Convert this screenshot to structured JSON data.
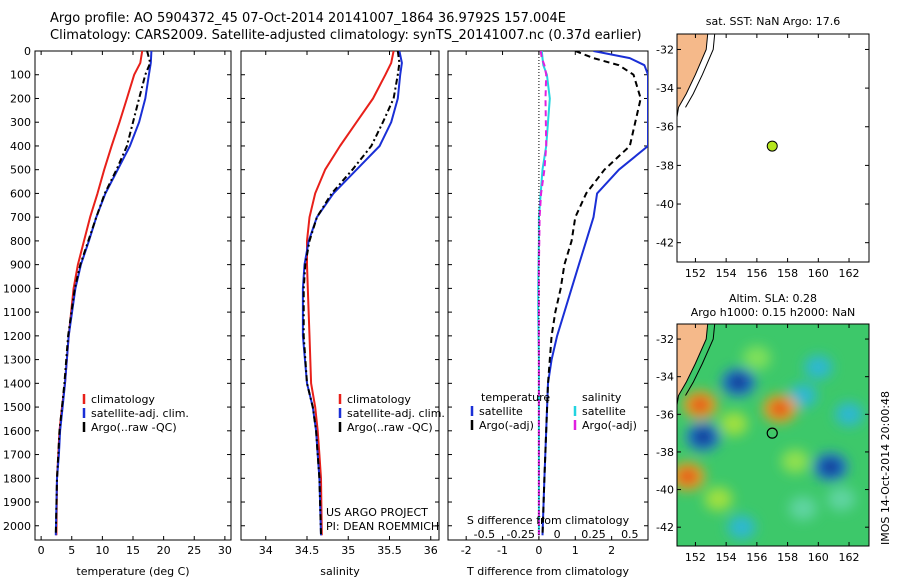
{
  "header": {
    "line1": "Argo profile: AO 5904372_45 07-Oct-2014 20141007_1864 36.9792S 157.004E",
    "line2": "Climatology: CARS2009. Satellite-adjusted climatology: synTS_20141007.nc (0.37d earlier)"
  },
  "colors": {
    "climatology": "#e8201a",
    "satellite": "#1a2fd6",
    "argo": "#000000",
    "satellite_salinity": "#22d4e0",
    "argo_salinity": "#e020e0",
    "land": "#f5b98a",
    "argo_marker": "#b5e61d"
  },
  "chart_data": [
    {
      "type": "line",
      "name": "temperature-profile",
      "xlabel": "temperature (deg C)",
      "ylabel": "",
      "xlim": [
        -1,
        31
      ],
      "ylim": [
        2060,
        0
      ],
      "xticks": [
        0,
        5,
        10,
        15,
        20,
        25,
        30
      ],
      "yticks": [
        0,
        100,
        200,
        300,
        400,
        500,
        600,
        700,
        800,
        900,
        1000,
        1100,
        1200,
        1300,
        1400,
        1500,
        1600,
        1700,
        1800,
        1900,
        2000
      ],
      "legend": {
        "position": "bottom-center",
        "labels": [
          "climatology",
          "satellite-adj. clim.",
          "Argo(..raw -QC)"
        ]
      },
      "series": [
        {
          "name": "climatology",
          "color": "#e8201a",
          "dash": "",
          "x": [
            16.5,
            16.2,
            15.2,
            14.0,
            12.8,
            11.5,
            10.3,
            9.2,
            8.0,
            7.0,
            6.0,
            5.3,
            4.5,
            3.9,
            3.4,
            3.0,
            2.8,
            2.6,
            2.5
          ],
          "y": [
            0,
            50,
            100,
            200,
            300,
            400,
            500,
            600,
            700,
            800,
            900,
            1000,
            1200,
            1400,
            1500,
            1600,
            1700,
            1800,
            2040
          ]
        },
        {
          "name": "satellite-adj. clim.",
          "color": "#1a2fd6",
          "dash": "",
          "x": [
            18.0,
            17.9,
            17.6,
            17.0,
            16.0,
            14.5,
            12.5,
            10.5,
            9.0,
            7.8,
            6.5,
            5.6,
            4.5,
            3.9,
            3.5,
            3.1,
            2.9,
            2.6,
            2.4
          ],
          "y": [
            0,
            50,
            100,
            200,
            300,
            400,
            500,
            600,
            700,
            800,
            900,
            1000,
            1200,
            1400,
            1500,
            1600,
            1700,
            1800,
            2040
          ]
        },
        {
          "name": "Argo(..raw -QC)",
          "color": "#000000",
          "dash": "6,3,2,3",
          "x": [
            17.3,
            17.8,
            17.0,
            16.0,
            15.0,
            14.0,
            12.3,
            10.4,
            9.0,
            7.7,
            6.4,
            5.5,
            4.4,
            3.8,
            3.4,
            3.0,
            2.8,
            2.6,
            2.4
          ],
          "y": [
            0,
            50,
            100,
            200,
            300,
            400,
            500,
            600,
            700,
            800,
            900,
            1000,
            1200,
            1400,
            1500,
            1600,
            1700,
            1800,
            2040
          ]
        }
      ]
    },
    {
      "type": "line",
      "name": "salinity-profile",
      "xlabel": "salinity",
      "ylabel": "",
      "xlim": [
        33.7,
        36.1
      ],
      "ylim": [
        2060,
        0
      ],
      "xticks": [
        34,
        34.5,
        35,
        35.5,
        36
      ],
      "legend": {
        "position": "bottom-center",
        "labels": [
          "climatology",
          "satellite-adj. clim.",
          "Argo(..raw -QC)"
        ]
      },
      "annotations": [
        "US ARGO PROJECT",
        "PI: DEAN ROEMMICH"
      ],
      "series": [
        {
          "name": "climatology",
          "color": "#e8201a",
          "dash": "",
          "x": [
            35.55,
            35.52,
            35.45,
            35.3,
            35.1,
            34.9,
            34.72,
            34.6,
            34.53,
            34.5,
            34.5,
            34.51,
            34.53,
            34.55,
            34.6,
            34.63,
            34.65,
            34.67,
            34.68
          ],
          "y": [
            0,
            50,
            100,
            200,
            300,
            400,
            500,
            600,
            700,
            800,
            900,
            1000,
            1200,
            1400,
            1500,
            1600,
            1700,
            1800,
            2040
          ]
        },
        {
          "name": "satellite-adj. clim.",
          "color": "#1a2fd6",
          "dash": "",
          "x": [
            35.62,
            35.65,
            35.63,
            35.6,
            35.52,
            35.38,
            35.1,
            34.82,
            34.62,
            34.52,
            34.47,
            34.45,
            34.45,
            34.5,
            34.57,
            34.61,
            34.63,
            34.65,
            34.67
          ],
          "y": [
            0,
            50,
            100,
            200,
            300,
            400,
            500,
            600,
            700,
            800,
            900,
            1000,
            1200,
            1400,
            1500,
            1600,
            1700,
            1800,
            2040
          ]
        },
        {
          "name": "Argo(..raw -QC)",
          "color": "#000000",
          "dash": "6,3,2,3",
          "x": [
            35.6,
            35.62,
            35.6,
            35.55,
            35.42,
            35.28,
            35.05,
            34.8,
            34.62,
            34.53,
            34.48,
            34.46,
            34.46,
            34.5,
            34.57,
            34.61,
            34.63,
            34.65,
            34.67
          ],
          "y": [
            0,
            50,
            100,
            200,
            300,
            400,
            500,
            600,
            700,
            800,
            900,
            1000,
            1200,
            1400,
            1500,
            1600,
            1700,
            1800,
            2040
          ]
        }
      ]
    },
    {
      "type": "line",
      "name": "difference-profile",
      "xlabel": "T difference from climatology",
      "xlabel_top": "S difference from climatology",
      "xlim": [
        -2.5,
        3
      ],
      "ylim": [
        2060,
        0
      ],
      "xticks": [
        -2,
        -1,
        0,
        1,
        2
      ],
      "xticks_s": [
        "-0.5",
        "-0.25",
        "0",
        "0.25",
        "0.5"
      ],
      "legend": {
        "position": "bottom",
        "temperature_header": "temperature",
        "salinity_header": "salinity",
        "labels": [
          "satellite",
          "Argo(-adj)",
          "satellite",
          "Argo(-adj)"
        ]
      },
      "series": [
        {
          "name": "temperature satellite",
          "color": "#1a2fd6",
          "dash": "",
          "x": [
            1.5,
            2.5,
            2.9,
            3.0,
            3.0,
            3.0,
            2.2,
            1.6,
            1.5,
            1.3,
            1.1,
            0.9,
            0.7,
            0.5,
            0.35,
            0.25,
            0.2,
            0.15,
            0.1
          ],
          "y": [
            0,
            30,
            60,
            100,
            200,
            400,
            500,
            600,
            700,
            800,
            900,
            1000,
            1100,
            1200,
            1300,
            1400,
            1600,
            1800,
            2040
          ]
        },
        {
          "name": "temperature Argo(-adj)",
          "color": "#000000",
          "dash": "6,4",
          "x": [
            1.0,
            1.5,
            2.2,
            2.6,
            2.8,
            2.5,
            1.8,
            1.3,
            1.0,
            0.9,
            0.7,
            0.6,
            0.45,
            0.35,
            0.3,
            0.25,
            0.2,
            0.15,
            0.1
          ],
          "y": [
            0,
            30,
            60,
            100,
            200,
            400,
            500,
            600,
            700,
            800,
            900,
            1000,
            1100,
            1200,
            1300,
            1400,
            1600,
            1800,
            2040
          ]
        },
        {
          "name": "salinity satellite",
          "color": "#22d4e0",
          "dash": "",
          "x": [
            0.08,
            0.1,
            0.12,
            0.22,
            0.3,
            0.2,
            0.1,
            0.05,
            0.0,
            0.0,
            -0.01,
            -0.02,
            -0.02,
            -0.01,
            0.0,
            0.0,
            0.0,
            0.0,
            0.0
          ],
          "y": [
            0,
            30,
            60,
            100,
            200,
            400,
            500,
            600,
            700,
            800,
            900,
            1000,
            1100,
            1200,
            1300,
            1400,
            1600,
            1800,
            2040
          ]
        },
        {
          "name": "salinity Argo(-adj)",
          "color": "#e020e0",
          "dash": "6,4",
          "x": [
            0.05,
            0.08,
            0.15,
            0.2,
            0.18,
            0.2,
            0.15,
            0.06,
            0.02,
            0.01,
            0.0,
            0.0,
            0.0,
            0.0,
            0.0,
            0.0,
            0.0,
            0.0,
            0.0
          ],
          "y": [
            0,
            30,
            60,
            100,
            200,
            400,
            500,
            600,
            700,
            800,
            900,
            1000,
            1100,
            1200,
            1300,
            1400,
            1600,
            1800,
            2040
          ]
        }
      ]
    },
    {
      "type": "scatter",
      "name": "sst-map",
      "title": "sat. SST: NaN Argo: 17.6",
      "xlim": [
        150.8,
        163.3
      ],
      "ylim": [
        -43,
        -31.2
      ],
      "xticks": [
        152,
        154,
        156,
        158,
        160,
        162
      ],
      "yticks": [
        -32,
        -34,
        -36,
        -38,
        -40,
        -42
      ],
      "argo_position": {
        "lon": 157.0,
        "lat": -37.0
      },
      "coast": {
        "lon": [
          150.8,
          152.8,
          152.7,
          152.0,
          151.4,
          150.9,
          150.8
        ],
        "lat": [
          -31.2,
          -31.2,
          -32.0,
          -33.3,
          -34.3,
          -35.0,
          -35.5
        ]
      }
    },
    {
      "type": "heatmap",
      "name": "sla-map",
      "title_line1": "Altim. SLA: 0.28",
      "title_line2": "Argo h1000: 0.15 h2000: NaN",
      "xlim": [
        150.8,
        163.3
      ],
      "ylim": [
        -43,
        -31.2
      ],
      "xticks": [
        152,
        154,
        156,
        158,
        160,
        162
      ],
      "yticks": [
        -32,
        -34,
        -36,
        -38,
        -40,
        -42
      ],
      "argo_position": {
        "lon": 157.0,
        "lat": -37.0
      },
      "features": [
        {
          "lon": 152.3,
          "lat": -35.5,
          "kind": "warm"
        },
        {
          "lon": 151.5,
          "lat": -39.3,
          "kind": "warm"
        },
        {
          "lon": 157.5,
          "lat": -35.7,
          "kind": "warm"
        },
        {
          "lon": 152.5,
          "lat": -37.2,
          "kind": "cold"
        },
        {
          "lon": 154.8,
          "lat": -34.3,
          "kind": "cold"
        },
        {
          "lon": 160.8,
          "lat": -38.8,
          "kind": "cold"
        }
      ]
    }
  ],
  "footer": {
    "timestamp": "IMOS 14-Oct-2014 20:00:48"
  }
}
